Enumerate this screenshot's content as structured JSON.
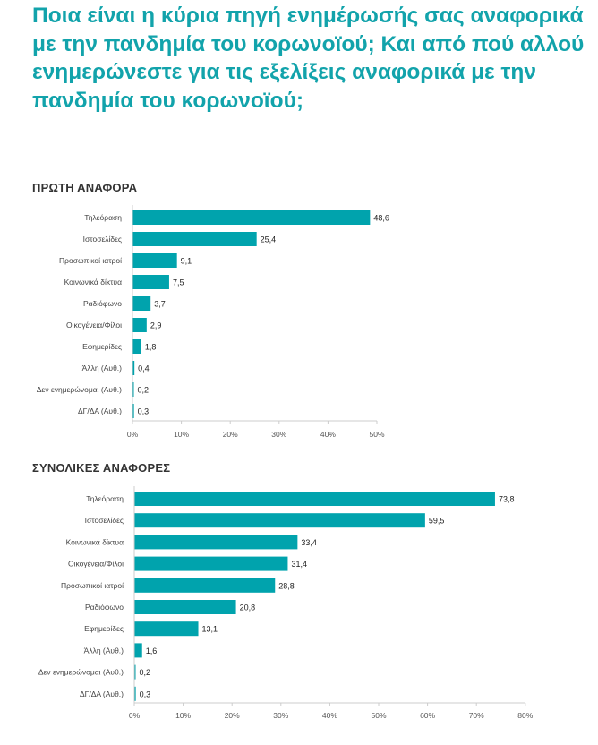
{
  "title": "Ποια είναι η κύρια πηγή ενημέρωσής σας αναφορικά με την πανδημία του κορωνοϊού; Και από πού αλλού ενημερώνεστε για τις εξελίξεις αναφορικά με την πανδημία του κορωνοϊού;",
  "colors": {
    "bar": "#00a3ad",
    "title": "#12a3ab"
  },
  "chart_data": [
    {
      "type": "bar",
      "orientation": "horizontal",
      "title": "ΠΡΩΤΗ ΑΝΑΦΟΡΑ",
      "categories": [
        "Τηλεόραση",
        "Ιστοσελίδες",
        "Προσωπικοί ιατροί",
        "Κοινωνικά δίκτυα",
        "Ραδιόφωνο",
        "Οικογένεια/Φίλοι",
        "Εφημερίδες",
        "Άλλη (Αυθ.)",
        "Δεν ενημερώνομαι (Αυθ.)",
        "ΔΓ/ΔΑ (Αυθ.)"
      ],
      "values": [
        48.6,
        25.4,
        9.1,
        7.5,
        3.7,
        2.9,
        1.8,
        0.4,
        0.2,
        0.3
      ],
      "value_labels": [
        "48,6",
        "25,4",
        "9,1",
        "7,5",
        "3,7",
        "2,9",
        "1,8",
        "0,4",
        "0,2",
        "0,3"
      ],
      "xlim": [
        0,
        50
      ],
      "ticks": [
        "0%",
        "10%",
        "20%",
        "30%",
        "40%",
        "50%"
      ],
      "grid": false
    },
    {
      "type": "bar",
      "orientation": "horizontal",
      "title": "ΣΥΝΟΛΙΚΕΣ ΑΝΑΦΟΡΕΣ",
      "categories": [
        "Τηλεόραση",
        "Ιστοσελίδες",
        "Κοινωνικά δίκτυα",
        "Οικογένεια/Φίλοι",
        "Προσωπικοί ιατροί",
        "Ραδιόφωνο",
        "Εφημερίδες",
        "Άλλη (Αυθ.)",
        "Δεν ενημερώνομαι (Αυθ.)",
        "ΔΓ/ΔΑ (Αυθ.)"
      ],
      "values": [
        73.8,
        59.5,
        33.4,
        31.4,
        28.8,
        20.8,
        13.1,
        1.6,
        0.2,
        0.3
      ],
      "value_labels": [
        "73,8",
        "59,5",
        "33,4",
        "31,4",
        "28,8",
        "20,8",
        "13,1",
        "1,6",
        "0,2",
        "0,3"
      ],
      "xlim": [
        0,
        80
      ],
      "ticks": [
        "0%",
        "10%",
        "20%",
        "30%",
        "40%",
        "50%",
        "60%",
        "70%",
        "80%"
      ],
      "grid": false
    }
  ]
}
